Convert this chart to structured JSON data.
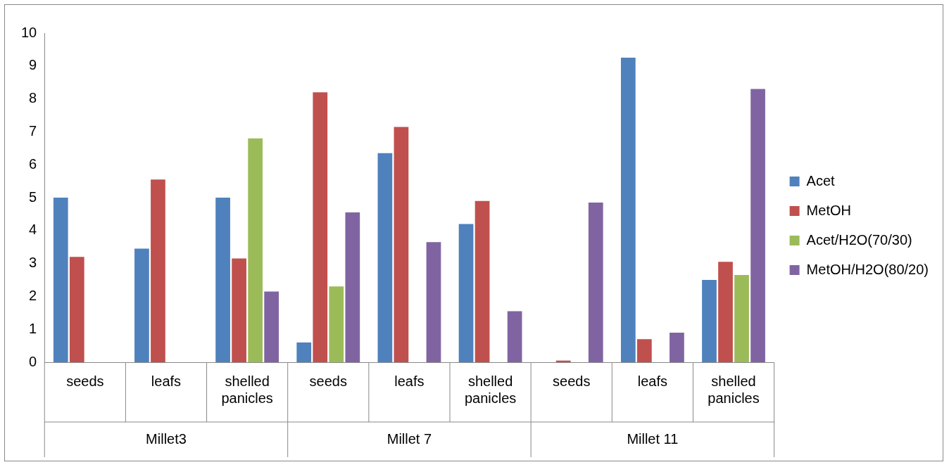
{
  "chart_data": {
    "type": "bar",
    "categories": [
      "seeds",
      "leafs",
      "shelled panicles",
      "seeds",
      "leafs",
      "shelled panicles",
      "seeds",
      "leafs",
      "shelled panicles"
    ],
    "series": [
      {
        "name": "Acet",
        "color": "#4f81bd",
        "values": [
          5.0,
          3.45,
          5.0,
          0.6,
          6.35,
          4.2,
          0,
          9.25,
          2.5
        ]
      },
      {
        "name": "MetOH",
        "color": "#c0504d",
        "values": [
          3.2,
          5.55,
          3.15,
          8.2,
          7.15,
          4.9,
          0.05,
          0.7,
          3.05
        ]
      },
      {
        "name": "Acet/H2O(70/30)",
        "color": "#9bbb59",
        "values": [
          0,
          0,
          6.8,
          2.3,
          0,
          0,
          0,
          0,
          2.65
        ]
      },
      {
        "name": "MetOH/H2O(80/20)",
        "color": "#8064a2",
        "values": [
          0,
          0,
          2.15,
          4.55,
          3.65,
          1.55,
          4.85,
          0.9,
          8.3
        ]
      }
    ],
    "annotations": [
      "Millet3",
      "Millet 7",
      "Millet 11"
    ],
    "ylim": [
      0,
      10
    ],
    "yticks": [
      0,
      1,
      2,
      3,
      4,
      5,
      6,
      7,
      8,
      9,
      10
    ],
    "grid": false,
    "legend": "right"
  }
}
